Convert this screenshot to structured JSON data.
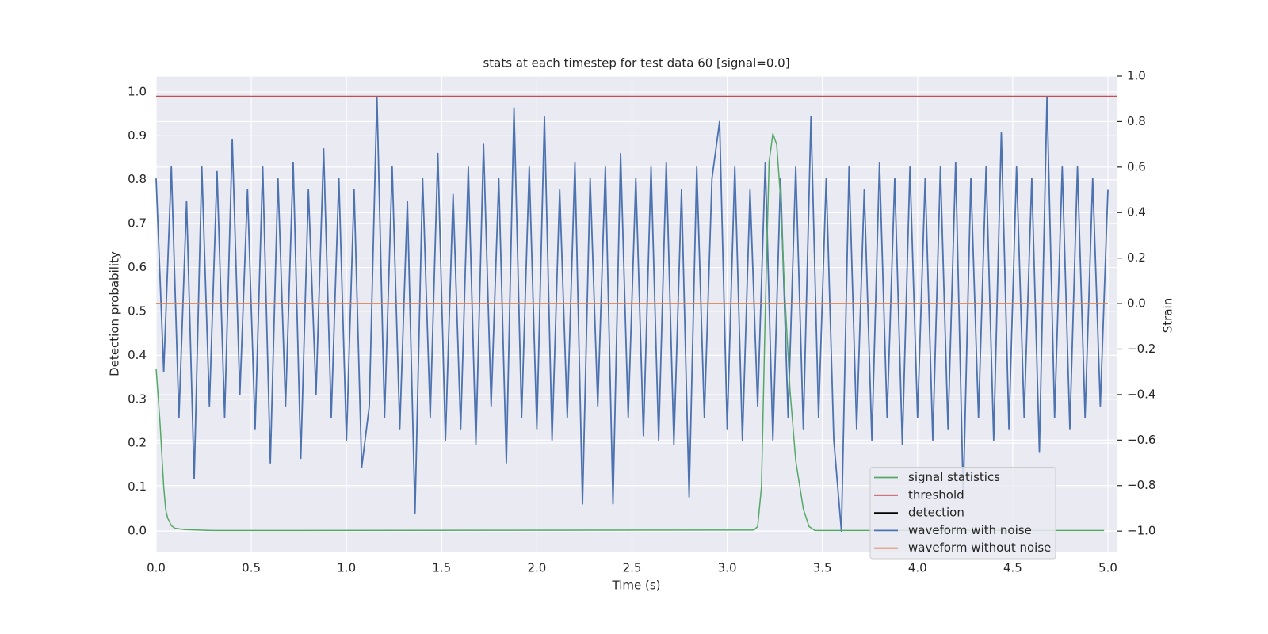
{
  "chart_data": {
    "type": "line",
    "title": "stats at each timestep for test data 60 [signal=0.0]",
    "xlabel": "Time (s)",
    "ylabel": "Detection probability",
    "y2label": "Strain",
    "xlim": [
      0,
      5.05
    ],
    "ylim": [
      -0.047,
      1.036
    ],
    "y2lim": [
      -1.09,
      1.0
    ],
    "xticks": [
      {
        "value": 0,
        "label": "0.0"
      },
      {
        "value": 0.5,
        "label": "0.5"
      },
      {
        "value": 1,
        "label": "1.0"
      },
      {
        "value": 1.5,
        "label": "1.5"
      },
      {
        "value": 2,
        "label": "2.0"
      },
      {
        "value": 2.5,
        "label": "2.5"
      },
      {
        "value": 3,
        "label": "3.0"
      },
      {
        "value": 3.5,
        "label": "3.5"
      },
      {
        "value": 4,
        "label": "4.0"
      },
      {
        "value": 4.5,
        "label": "4.5"
      },
      {
        "value": 5,
        "label": "5.0"
      }
    ],
    "yticks": [
      {
        "value": 0,
        "label": "0.0"
      },
      0.1,
      0.2,
      0.3,
      0.4,
      0.5,
      0.6,
      0.7,
      0.8,
      0.9,
      {
        "value": 1,
        "label": "1.0"
      }
    ],
    "y2ticks": [
      {
        "value": -1,
        "label": "−1.0"
      },
      {
        "value": -0.8,
        "label": "−0.8"
      },
      {
        "value": -0.6,
        "label": "−0.6"
      },
      {
        "value": -0.4,
        "label": "−0.4"
      },
      {
        "value": -0.2,
        "label": "−0.2"
      },
      {
        "value": 0,
        "label": "0.0"
      },
      0.2,
      0.4,
      0.6,
      0.8,
      {
        "value": 1,
        "label": "1.0"
      }
    ],
    "grid": true,
    "legend": "lower right",
    "series": [
      {
        "name": "signal statistics",
        "color": "#55a868",
        "axis": "y",
        "x": [
          0,
          0.02,
          0.04,
          0.05,
          0.06,
          0.08,
          0.1,
          0.15,
          0.3,
          3.14,
          3.16,
          3.18,
          3.2,
          3.22,
          3.24,
          3.26,
          3.28,
          3.3,
          3.33,
          3.36,
          3.4,
          3.43,
          3.46,
          4.98
        ],
        "values": [
          0.37,
          0.25,
          0.1,
          0.05,
          0.03,
          0.012,
          0.006,
          0.003,
          0.001,
          0.002,
          0.01,
          0.1,
          0.5,
          0.84,
          0.905,
          0.88,
          0.76,
          0.56,
          0.32,
          0.16,
          0.05,
          0.01,
          0.001,
          0.001
        ]
      },
      {
        "name": "threshold",
        "color": "#c44e52",
        "axis": "y",
        "x": [
          0,
          5.05
        ],
        "values": [
          0.99,
          0.99
        ]
      },
      {
        "name": "detection",
        "color": "#000000",
        "axis": "y",
        "x": [],
        "values": []
      },
      {
        "name": "waveform with noise",
        "color": "#4c72b0",
        "axis": "y2",
        "x": [
          0,
          0.04,
          0.08,
          0.12,
          0.16,
          0.2,
          0.24,
          0.28,
          0.32,
          0.36,
          0.4,
          0.44,
          0.48,
          0.52,
          0.56,
          0.6,
          0.64,
          0.68,
          0.72,
          0.76,
          0.8,
          0.84,
          0.88,
          0.92,
          0.96,
          1.0,
          1.04,
          1.08,
          1.12,
          1.16,
          1.2,
          1.24,
          1.28,
          1.32,
          1.36,
          1.4,
          1.44,
          1.48,
          1.52,
          1.56,
          1.6,
          1.64,
          1.68,
          1.72,
          1.76,
          1.8,
          1.84,
          1.88,
          1.92,
          1.96,
          2.0,
          2.04,
          2.08,
          2.12,
          2.16,
          2.2,
          2.24,
          2.28,
          2.32,
          2.36,
          2.4,
          2.44,
          2.48,
          2.52,
          2.56,
          2.6,
          2.64,
          2.68,
          2.72,
          2.76,
          2.8,
          2.84,
          2.88,
          2.92,
          2.96,
          3.0,
          3.04,
          3.08,
          3.12,
          3.16,
          3.2,
          3.24,
          3.28,
          3.32,
          3.36,
          3.4,
          3.44,
          3.48,
          3.52,
          3.56,
          3.6,
          3.64,
          3.68,
          3.72,
          3.76,
          3.8,
          3.84,
          3.88,
          3.92,
          3.96,
          4.0,
          4.04,
          4.08,
          4.12,
          4.16,
          4.2,
          4.24,
          4.28,
          4.32,
          4.36,
          4.4,
          4.44,
          4.48,
          4.52,
          4.56,
          4.6,
          4.64,
          4.68,
          4.72,
          4.76,
          4.8,
          4.84,
          4.88,
          4.92,
          4.96,
          5.0
        ],
        "values": [
          0.55,
          -0.3,
          0.6,
          -0.5,
          0.45,
          -0.77,
          0.6,
          -0.45,
          0.58,
          -0.5,
          0.72,
          -0.4,
          0.5,
          -0.55,
          0.6,
          -0.7,
          0.55,
          -0.45,
          0.62,
          -0.68,
          0.5,
          -0.4,
          0.68,
          -0.5,
          0.55,
          -0.6,
          0.5,
          -0.72,
          -0.45,
          0.91,
          -0.5,
          0.6,
          -0.55,
          0.45,
          -0.92,
          0.55,
          -0.5,
          0.66,
          -0.6,
          0.48,
          -0.55,
          0.6,
          -0.62,
          0.7,
          -0.45,
          0.55,
          -0.7,
          0.86,
          -0.5,
          0.6,
          -0.55,
          0.82,
          -0.6,
          0.5,
          -0.5,
          0.62,
          -0.88,
          0.55,
          -0.45,
          0.6,
          -0.88,
          0.66,
          -0.5,
          0.55,
          -0.58,
          0.6,
          -0.6,
          0.62,
          -0.62,
          0.5,
          -0.85,
          0.6,
          -0.5,
          0.55,
          0.8,
          -0.55,
          0.6,
          -0.6,
          0.5,
          -0.45,
          0.62,
          -0.6,
          0.55,
          -0.5,
          0.6,
          -0.55,
          0.82,
          -0.5,
          0.55,
          -0.6,
          -1.0,
          0.6,
          -0.55,
          0.5,
          -0.6,
          0.62,
          -0.5,
          0.55,
          -0.62,
          0.6,
          -0.5,
          0.55,
          -0.6,
          0.6,
          -0.55,
          0.62,
          -0.85,
          0.55,
          -0.5,
          0.6,
          -0.6,
          0.75,
          -0.55,
          0.6,
          -0.5,
          0.55,
          -0.65,
          0.91,
          -0.5,
          0.6,
          -0.55,
          0.6,
          -0.5,
          0.55,
          -0.45,
          0.5
        ]
      },
      {
        "name": "waveform without noise",
        "color": "#dd8452",
        "axis": "y2",
        "x": [
          0,
          5
        ],
        "values": [
          0,
          0
        ]
      }
    ]
  }
}
